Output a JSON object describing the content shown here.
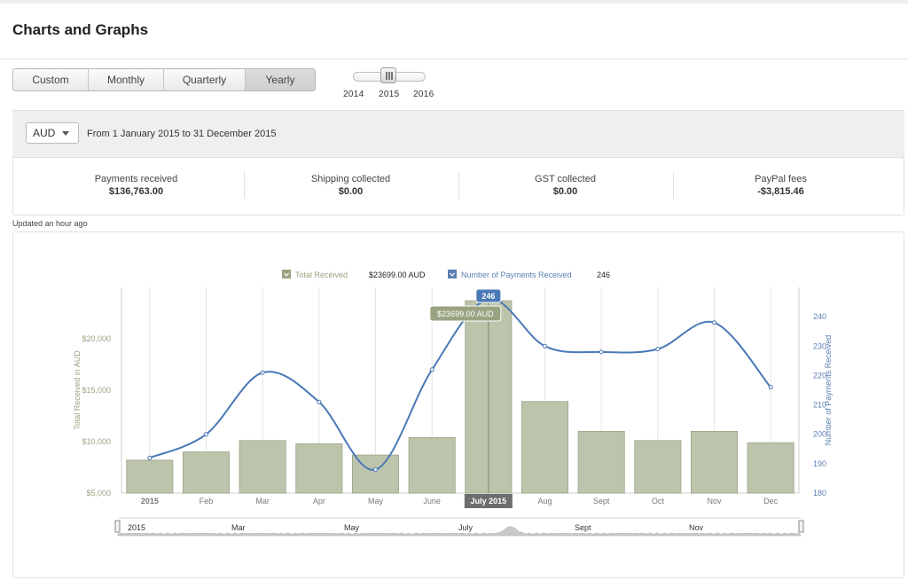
{
  "header": {
    "title": "Charts and Graphs"
  },
  "period_tabs": [
    {
      "label": "Custom",
      "active": false
    },
    {
      "label": "Monthly",
      "active": false
    },
    {
      "label": "Quarterly",
      "active": false
    },
    {
      "label": "Yearly",
      "active": true
    }
  ],
  "year_slider": {
    "years": [
      "2014",
      "2015",
      "2016"
    ],
    "selected": "2015"
  },
  "filter": {
    "currency": "AUD",
    "from_label": "From",
    "from_date": "1 January 2015",
    "to_label": "to",
    "to_date": "31 December 2015"
  },
  "summary": [
    {
      "label": "Payments received",
      "value": "$136,763.00"
    },
    {
      "label": "Shipping collected",
      "value": "$0.00"
    },
    {
      "label": "GST collected",
      "value": "$0.00"
    },
    {
      "label": "PayPal fees",
      "value": "-$3,815.46"
    }
  ],
  "updated": "Updated an hour ago",
  "colors": {
    "bar": "#bcc5ac",
    "bar_stroke": "#98a388",
    "line": "#4a79b6",
    "left_axis": "#9aa381",
    "right_axis": "#5b7fb3"
  },
  "chart_data": {
    "type": "bar",
    "categories": [
      "2015",
      "Feb",
      "Mar",
      "Apr",
      "May",
      "June",
      "July 2015",
      "Aug",
      "Sept",
      "Oct",
      "Nov",
      "Dec"
    ],
    "series": [
      {
        "name": "Total Received",
        "type": "bar",
        "axis": "left",
        "values": [
          8200,
          9000,
          10100,
          9800,
          8700,
          10400,
          23699,
          13900,
          11000,
          10100,
          11000,
          9900
        ]
      },
      {
        "name": "Number of Payments Received",
        "type": "line",
        "axis": "right",
        "values": [
          192,
          200,
          221,
          211,
          188,
          222,
          246,
          230,
          228,
          229,
          238,
          216
        ]
      }
    ],
    "ylabel": "Total Received in AUD",
    "ylabel_right": "Number of Payments Received",
    "ylim": [
      5000,
      25000
    ],
    "ylim_right": [
      180,
      250
    ],
    "yticks": [
      {
        "value": 5000,
        "label": "$5,000"
      },
      {
        "value": 10000,
        "label": "$10,000"
      },
      {
        "value": 15000,
        "label": "$15,000"
      },
      {
        "value": 20000,
        "label": "$20,000"
      }
    ],
    "yticks_right": [
      180,
      190,
      200,
      210,
      220,
      230,
      240
    ],
    "legend": [
      {
        "name": "Total Received",
        "value": "$23699.00 AUD"
      },
      {
        "name": "Number of Payments Received",
        "value": "246"
      }
    ],
    "legend_position": "top-center",
    "grid": "vertical",
    "highlight_index": 6,
    "tooltip_bar": "$23699.00 AUD",
    "tooltip_line": "246",
    "navigator_labels": [
      "2015",
      "Mar",
      "May",
      "July",
      "Sept",
      "Nov"
    ]
  }
}
